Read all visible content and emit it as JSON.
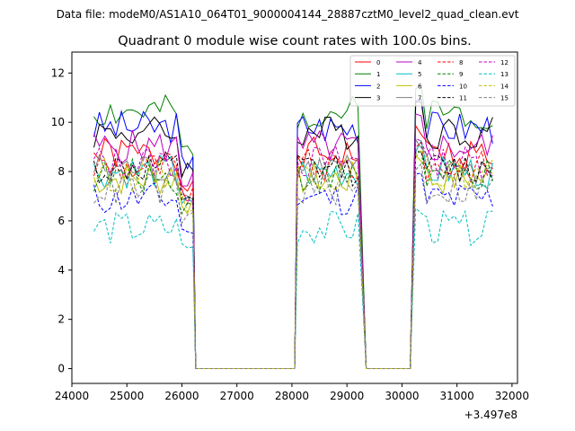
{
  "chart_data": {
    "type": "line",
    "suptitle": "Data file: modeM0/AS1A10_064T01_9000004144_28887cztM0_level2_quad_clean.evt",
    "title": "Quadrant 0 module wise count rates with 100.0s bins.",
    "xlabel": "",
    "ylabel": "",
    "offset_label": "+3.497e8",
    "xlim": [
      24000,
      32100
    ],
    "ylim": [
      -0.6,
      12.85
    ],
    "xticks": [
      24000,
      25000,
      26000,
      27000,
      28000,
      29000,
      30000,
      31000,
      32000
    ],
    "yticks": [
      0,
      2,
      4,
      6,
      8,
      10,
      12
    ],
    "legend_position": "top-right",
    "series": [
      {
        "name": "0",
        "color": "#ff0000",
        "dash": "solid",
        "level": 8.7,
        "seed": 1
      },
      {
        "name": "1",
        "color": "#008000",
        "dash": "solid",
        "level": 10.4,
        "seed": 2
      },
      {
        "name": "2",
        "color": "#0000ff",
        "dash": "solid",
        "level": 9.8,
        "seed": 3
      },
      {
        "name": "3",
        "color": "#000000",
        "dash": "solid",
        "level": 9.6,
        "seed": 4
      },
      {
        "name": "4",
        "color": "#bf00bf",
        "dash": "solid",
        "level": 9.0,
        "seed": 5
      },
      {
        "name": "5",
        "color": "#00bfbf",
        "dash": "solid",
        "level": 8.0,
        "seed": 6
      },
      {
        "name": "6",
        "color": "#bfbf00",
        "dash": "solid",
        "level": 7.7,
        "seed": 7
      },
      {
        "name": "7",
        "color": "#808080",
        "dash": "solid",
        "level": 8.1,
        "seed": 8
      },
      {
        "name": "8",
        "color": "#ff0000",
        "dash": "dashed",
        "level": 8.2,
        "seed": 9
      },
      {
        "name": "9",
        "color": "#008000",
        "dash": "dashed",
        "level": 7.8,
        "seed": 10
      },
      {
        "name": "10",
        "color": "#0000ff",
        "dash": "dashed",
        "level": 6.9,
        "seed": 11
      },
      {
        "name": "11",
        "color": "#000000",
        "dash": "dashed",
        "level": 8.1,
        "seed": 12
      },
      {
        "name": "12",
        "color": "#bf00bf",
        "dash": "dashed",
        "level": 8.4,
        "seed": 13
      },
      {
        "name": "13",
        "color": "#00bfbf",
        "dash": "dashed",
        "level": 5.7,
        "seed": 14
      },
      {
        "name": "14",
        "color": "#bfbf00",
        "dash": "dashed",
        "level": 7.9,
        "seed": 15
      },
      {
        "name": "15",
        "color": "#808080",
        "dash": "dashed",
        "level": 7.3,
        "seed": 16
      }
    ],
    "time_segments": [
      {
        "start": 24400,
        "end": 26250,
        "sample_step": 100
      },
      {
        "start": 26250,
        "end": 28050,
        "sample_step": 1800,
        "zero": true
      },
      {
        "start": 28100,
        "end": 29250,
        "sample_step": 100
      },
      {
        "start": 29350,
        "end": 30150,
        "sample_step": 800,
        "zero": true
      },
      {
        "start": 30250,
        "end": 31650,
        "sample_step": 100
      }
    ]
  }
}
